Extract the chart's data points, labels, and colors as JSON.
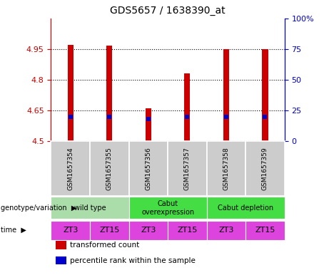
{
  "title": "GDS5657 / 1638390_at",
  "samples": [
    "GSM1657354",
    "GSM1657355",
    "GSM1657356",
    "GSM1657357",
    "GSM1657358",
    "GSM1657359"
  ],
  "transformed_counts": [
    4.97,
    4.965,
    4.66,
    4.83,
    4.95,
    4.95
  ],
  "percentile_ranks_pct": [
    20,
    20,
    18,
    20,
    20,
    20
  ],
  "ylim_left": [
    4.5,
    5.1
  ],
  "ylim_right": [
    0,
    100
  ],
  "yticks_left": [
    4.5,
    4.65,
    4.8,
    4.95
  ],
  "yticks_right": [
    0,
    25,
    50,
    75,
    100
  ],
  "ytick_labels_left": [
    "4.5",
    "4.65",
    "4.8",
    "4.95"
  ],
  "ytick_labels_right": [
    "0",
    "25",
    "50",
    "75",
    "100%"
  ],
  "bar_color": "#cc0000",
  "percentile_color": "#0000cc",
  "bar_bottom": 4.5,
  "bar_width": 0.15,
  "groups": [
    {
      "label": "wild type",
      "start": 0,
      "end": 1,
      "color": "#aaddaa"
    },
    {
      "label": "Cabut\noverexpression",
      "start": 2,
      "end": 3,
      "color": "#44dd44"
    },
    {
      "label": "Cabut depletion",
      "start": 4,
      "end": 5,
      "color": "#44dd44"
    }
  ],
  "time_labels": [
    "ZT3",
    "ZT15",
    "ZT3",
    "ZT15",
    "ZT3",
    "ZT15"
  ],
  "time_color": "#dd44dd",
  "sample_bg_color": "#cccccc",
  "left_axis_color": "#cc0000",
  "right_axis_color": "#0000cc",
  "legend_items": [
    {
      "color": "#cc0000",
      "label": "transformed count"
    },
    {
      "color": "#0000cc",
      "label": "percentile rank within the sample"
    }
  ]
}
